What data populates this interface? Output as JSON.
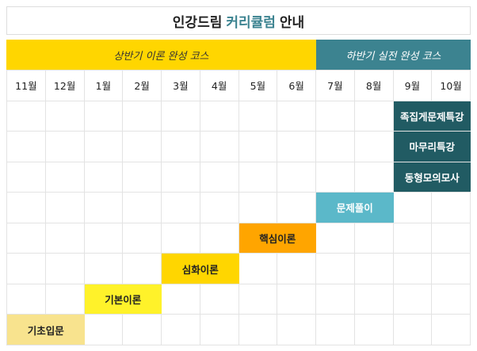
{
  "title": {
    "prefix": "인강드림",
    "highlight": "커리큘럼",
    "suffix": "안내"
  },
  "banners": [
    {
      "label": "상반기 이론 완성 코스",
      "color": "#ffd600",
      "text_color": "#333333"
    },
    {
      "label": "하반기 실전 완성 코스",
      "color": "#3c8390",
      "text_color": "#ffffff"
    }
  ],
  "months": [
    "11월",
    "12월",
    "1월",
    "2월",
    "3월",
    "4월",
    "5월",
    "6월",
    "7월",
    "8월",
    "9월",
    "10월"
  ],
  "courses": [
    {
      "label": "족집게문제특강",
      "start_month": "9월",
      "end_month": "10월",
      "color": "#215b63",
      "text_color": "#ffffff"
    },
    {
      "label": "마무리특강",
      "start_month": "9월",
      "end_month": "10월",
      "color": "#215b63",
      "text_color": "#ffffff"
    },
    {
      "label": "동형모의모사",
      "start_month": "9월",
      "end_month": "10월",
      "color": "#215b63",
      "text_color": "#ffffff"
    },
    {
      "label": "문제풀이",
      "start_month": "7월",
      "end_month": "8월",
      "color": "#5bb8c9",
      "text_color": "#ffffff"
    },
    {
      "label": "핵심이론",
      "start_month": "5월",
      "end_month": "6월",
      "color": "#ffa500",
      "text_color": "#222222"
    },
    {
      "label": "심화이론",
      "start_month": "3월",
      "end_month": "4월",
      "color": "#ffd600",
      "text_color": "#222222"
    },
    {
      "label": "기본이론",
      "start_month": "1월",
      "end_month": "2월",
      "color": "#fff22a",
      "text_color": "#222222"
    },
    {
      "label": "기초입문",
      "start_month": "11월",
      "end_month": "12월",
      "color": "#f8e38e",
      "text_color": "#222222"
    }
  ]
}
